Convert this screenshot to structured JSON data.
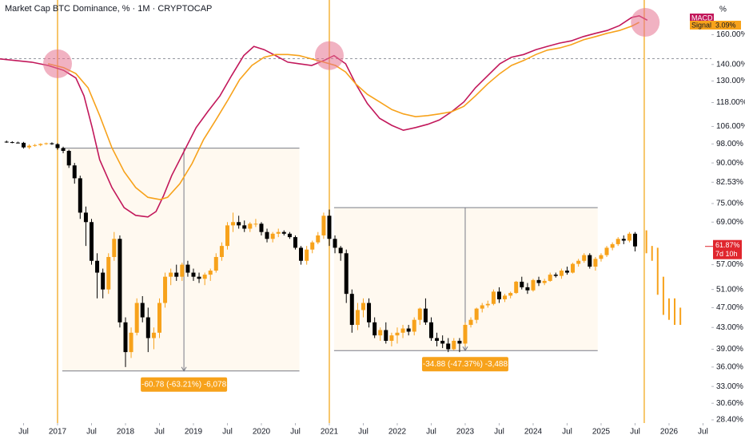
{
  "chart_data": {
    "type": "candlestick",
    "title": "Market Cap BTC Dominance, % · 1M · CRYPTOCAP",
    "y_unit_label": "%",
    "log_scale": true,
    "xlim": [
      2016.153,
      2026.624
    ],
    "xticks": [
      {
        "value": 2016.5,
        "label": "Jul"
      },
      2017,
      {
        "value": 2017.5,
        "label": "Jul"
      },
      2018,
      {
        "value": 2018.5,
        "label": "Jul"
      },
      2019,
      {
        "value": 2019.5,
        "label": "Jul"
      },
      2020,
      {
        "value": 2020.5,
        "label": "Jul"
      },
      2021,
      {
        "value": 2021.5,
        "label": "Jul"
      },
      2022,
      {
        "value": 2022.5,
        "label": "Jul"
      },
      2023,
      {
        "value": 2023.5,
        "label": "Jul"
      },
      2024,
      {
        "value": 2024.5,
        "label": "Jul"
      },
      2025,
      {
        "value": 2025.5,
        "label": "Jul"
      },
      2026,
      {
        "value": 2026.5,
        "label": "Jul"
      }
    ],
    "ylim": [
      28,
      187
    ],
    "yticks": [
      {
        "value": 160,
        "label": "160.00%"
      },
      {
        "value": 140,
        "label": "140.00%"
      },
      {
        "value": 130,
        "label": "130.00%"
      },
      {
        "value": 118,
        "label": "118.00%"
      },
      {
        "value": 106,
        "label": "106.00%"
      },
      {
        "value": 98,
        "label": "98.00%"
      },
      {
        "value": 90,
        "label": "90.00%"
      },
      {
        "value": 82.53,
        "label": "82.53%"
      },
      {
        "value": 75,
        "label": "75.00%"
      },
      {
        "value": 69,
        "label": "69.00%"
      },
      {
        "value": 57,
        "label": "57.00%"
      },
      {
        "value": 51,
        "label": "51.00%"
      },
      {
        "value": 47,
        "label": "47.00%"
      },
      {
        "value": 43,
        "label": "43.00%"
      },
      {
        "value": 39,
        "label": "39.00%"
      },
      {
        "value": 36,
        "label": "36.00%"
      },
      {
        "value": 33,
        "label": "33.00%"
      },
      {
        "value": 30.6,
        "label": "30.60%"
      },
      {
        "value": 28.4,
        "label": "28.40%"
      }
    ],
    "y2lim": [
      -4.26,
      3.5
    ],
    "up_color": "#f7a21b",
    "down_color": "#000000",
    "candles": {
      "x": [
        2016.25,
        2016.333,
        2016.417,
        2016.5,
        2016.583,
        2016.667,
        2016.75,
        2016.833,
        2016.917,
        2017.0,
        2017.083,
        2017.167,
        2017.25,
        2017.333,
        2017.417,
        2017.5,
        2017.583,
        2017.667,
        2017.75,
        2017.833,
        2017.917,
        2018.0,
        2018.083,
        2018.167,
        2018.25,
        2018.333,
        2018.417,
        2018.5,
        2018.583,
        2018.667,
        2018.75,
        2018.833,
        2018.917,
        2019.0,
        2019.083,
        2019.167,
        2019.25,
        2019.333,
        2019.417,
        2019.5,
        2019.583,
        2019.667,
        2019.75,
        2019.833,
        2019.917,
        2020.0,
        2020.083,
        2020.167,
        2020.25,
        2020.333,
        2020.417,
        2020.5,
        2020.583,
        2020.667,
        2020.75,
        2020.833,
        2020.917,
        2021.0,
        2021.083,
        2021.167,
        2021.25,
        2021.333,
        2021.417,
        2021.5,
        2021.583,
        2021.667,
        2021.75,
        2021.833,
        2021.917,
        2022.0,
        2022.083,
        2022.167,
        2022.25,
        2022.333,
        2022.417,
        2022.5,
        2022.583,
        2022.667,
        2022.75,
        2022.833,
        2022.917,
        2023.0,
        2023.083,
        2023.167,
        2023.25,
        2023.333,
        2023.417,
        2023.5,
        2023.583,
        2023.667,
        2023.75,
        2023.833,
        2023.917,
        2024.0,
        2024.083,
        2024.167,
        2024.25,
        2024.333,
        2024.417,
        2024.5,
        2024.583,
        2024.667,
        2024.75,
        2024.833,
        2024.917,
        2025.0,
        2025.083,
        2025.167,
        2025.25,
        2025.333,
        2025.417,
        2025.5
      ],
      "open": [
        99,
        98.8,
        98.6,
        98.5,
        96.5,
        97.2,
        97.5,
        98,
        98.3,
        97.9,
        96.2,
        95,
        89,
        84,
        72,
        69,
        58,
        55,
        51,
        59,
        64,
        44,
        38.5,
        42,
        48,
        45,
        41,
        42,
        48,
        54,
        55,
        54,
        57,
        55,
        54,
        53.5,
        54.5,
        55.5,
        59,
        62,
        68,
        69,
        68,
        67,
        68.5,
        68.5,
        66,
        64,
        65.5,
        66,
        65.5,
        64.5,
        61.5,
        58,
        61,
        63,
        65,
        71,
        64,
        61.5,
        60,
        50,
        43.5,
        46.5,
        48,
        44,
        41.5,
        42.5,
        40.5,
        41.5,
        42,
        42.8,
        42.2,
        44.5,
        46.8,
        44,
        41,
        40.5,
        40,
        39,
        40.5,
        40,
        43.5,
        44.5,
        46.8,
        47.5,
        47.8,
        50.5,
        48.8,
        49.6,
        50.2,
        52.8,
        51.5,
        50.8,
        53.2,
        52.5,
        53,
        54.5,
        54.2,
        55.5,
        55,
        57.2,
        58,
        59.5,
        56.5,
        58.5,
        59.5,
        61.5,
        62.5,
        64,
        63.5,
        65.5
      ],
      "high": [
        99.5,
        99.2,
        99,
        98.9,
        97.8,
        98,
        98.3,
        98.6,
        98.7,
        98.3,
        96.8,
        95.5,
        90,
        85,
        74,
        70,
        60,
        56,
        60,
        66,
        65,
        45,
        43,
        49,
        49.5,
        47,
        43,
        49,
        55,
        56,
        57,
        57.5,
        58,
        56,
        55,
        55,
        56,
        60,
        63,
        69,
        72,
        71,
        69.5,
        69,
        70,
        69,
        67,
        66,
        67,
        66.5,
        66,
        65,
        62,
        62,
        63.5,
        66,
        72,
        73,
        65,
        62,
        61,
        51,
        48,
        49,
        49,
        45,
        43,
        44,
        42,
        43,
        43.5,
        43.5,
        45,
        47,
        49,
        45,
        42,
        41.5,
        41,
        41,
        41,
        44,
        45,
        47,
        48,
        48.5,
        51,
        51.5,
        50,
        50.5,
        53,
        54,
        52.5,
        53.5,
        54,
        53.5,
        55,
        55,
        56,
        56.5,
        57.5,
        58.5,
        60,
        60,
        59,
        60,
        62,
        63,
        64.5,
        65,
        66,
        66
      ],
      "low": [
        98.5,
        98.3,
        98.2,
        96,
        95.8,
        96.8,
        97,
        97.6,
        97.6,
        95.5,
        94,
        88,
        82,
        70,
        62,
        57,
        49,
        49,
        50,
        58,
        43,
        36,
        37.5,
        41.5,
        44,
        38.5,
        39,
        41,
        47,
        52,
        53,
        53,
        54,
        53,
        52.5,
        52,
        53,
        55,
        58,
        61,
        66,
        67,
        66,
        66,
        67.5,
        65,
        63,
        63,
        64.5,
        65,
        64,
        61,
        57,
        57,
        60,
        62.5,
        64,
        62,
        60,
        58,
        48,
        42,
        42.5,
        45,
        43,
        41,
        40.5,
        40,
        39.5,
        40,
        41,
        41.5,
        41.5,
        43.5,
        43.5,
        40.5,
        39.5,
        39.2,
        38.5,
        38.8,
        38.5,
        39.5,
        43,
        43.8,
        46,
        47,
        47.5,
        48,
        48.2,
        49,
        50,
        51,
        50,
        50.5,
        51.8,
        52,
        52.8,
        53.8,
        53.5,
        54.5,
        54.8,
        56.5,
        57.5,
        56,
        55.5,
        57.8,
        59,
        60.8,
        62,
        62.5,
        63,
        60.5
      ],
      "close": [
        98.8,
        98.6,
        98.5,
        96.5,
        97.2,
        97.5,
        98,
        98.3,
        97.9,
        96.2,
        95,
        89,
        84,
        72,
        69,
        58,
        55,
        51,
        59,
        64,
        44,
        38.5,
        42,
        48,
        45,
        41,
        42,
        48,
        54,
        55,
        54,
        57,
        55,
        54,
        53.5,
        54.5,
        55.5,
        59,
        62,
        68,
        69,
        68,
        67,
        68.5,
        68.5,
        66,
        64,
        65.5,
        66,
        65.5,
        64.5,
        61.5,
        58,
        61,
        63,
        65,
        71,
        64,
        61.5,
        60,
        50,
        43.5,
        46.5,
        48,
        44,
        41.5,
        42.5,
        40.5,
        41.5,
        42,
        42.8,
        42.2,
        44.5,
        46.8,
        44,
        41,
        40.5,
        40,
        39,
        40.5,
        40,
        43.5,
        44.5,
        46.8,
        47.5,
        47.8,
        50.5,
        48.8,
        49.6,
        50.2,
        52.8,
        51.5,
        50.8,
        53.2,
        52.5,
        53,
        54.5,
        54.2,
        55.5,
        55,
        57.2,
        58,
        59.5,
        56.5,
        58.5,
        59.5,
        61.5,
        62.5,
        64,
        63.5,
        65.5,
        61.87
      ]
    },
    "projection": {
      "color": "#f7a21b",
      "x": [
        2025.667,
        2025.75,
        2025.833,
        2025.917,
        2026.0,
        2026.083,
        2026.167
      ],
      "high": [
        66.5,
        62,
        61.5,
        54,
        49,
        49,
        47
      ],
      "low": [
        60,
        58,
        49.8,
        45.5,
        44.5,
        43.5,
        43.5
      ]
    },
    "series": [
      {
        "name": "MACD",
        "color": "#c2185b",
        "axis": "y2",
        "x": [
          2016.15,
          2016.62,
          2016.86,
          2017.09,
          2017.27,
          2017.39,
          2017.51,
          2017.62,
          2017.8,
          2017.98,
          2018.15,
          2018.33,
          2018.45,
          2018.56,
          2018.68,
          2018.86,
          2019.04,
          2019.21,
          2019.39,
          2019.56,
          2019.74,
          2019.89,
          2020.04,
          2020.21,
          2020.39,
          2020.56,
          2020.74,
          2020.92,
          2021.07,
          2021.24,
          2021.39,
          2021.56,
          2021.74,
          2021.92,
          2022.09,
          2022.27,
          2022.45,
          2022.62,
          2022.8,
          2022.98,
          2023.15,
          2023.33,
          2023.51,
          2023.68,
          2023.86,
          2024.04,
          2024.21,
          2024.39,
          2024.56,
          2024.74,
          2024.92,
          2025.09,
          2025.27,
          2025.45,
          2025.56,
          2025.68
        ],
        "values": [
          2.42,
          2.36,
          2.3,
          2.21,
          2.07,
          1.74,
          1.16,
          0.57,
          0.06,
          -0.31,
          -0.45,
          -0.48,
          -0.38,
          -0.09,
          0.28,
          0.72,
          1.16,
          1.45,
          1.74,
          2.11,
          2.48,
          2.65,
          2.59,
          2.48,
          2.36,
          2.33,
          2.3,
          2.39,
          2.48,
          2.33,
          1.96,
          1.6,
          1.33,
          1.2,
          1.11,
          1.16,
          1.22,
          1.3,
          1.45,
          1.63,
          1.89,
          2.11,
          2.33,
          2.45,
          2.5,
          2.59,
          2.65,
          2.71,
          2.75,
          2.83,
          2.89,
          2.94,
          3.03,
          3.18,
          3.21,
          3.13
        ]
      },
      {
        "name": "Signal",
        "color": "#f7a21b",
        "axis": "y2",
        "value_label": "3.09%",
        "x": [
          2016.86,
          2017.09,
          2017.27,
          2017.45,
          2017.62,
          2017.8,
          2017.98,
          2018.15,
          2018.33,
          2018.51,
          2018.62,
          2018.8,
          2018.98,
          2019.15,
          2019.33,
          2019.51,
          2019.68,
          2019.86,
          2020.04,
          2020.21,
          2020.39,
          2020.56,
          2020.74,
          2020.92,
          2021.09,
          2021.24,
          2021.39,
          2021.56,
          2021.74,
          2021.92,
          2022.09,
          2022.27,
          2022.45,
          2022.62,
          2022.8,
          2022.98,
          2023.15,
          2023.33,
          2023.51,
          2023.68,
          2023.86,
          2024.04,
          2024.21,
          2024.39,
          2024.56,
          2024.74,
          2024.92,
          2025.09,
          2025.27,
          2025.45,
          2025.56
        ],
        "values": [
          2.33,
          2.26,
          2.15,
          1.89,
          1.38,
          0.79,
          0.35,
          0.06,
          -0.12,
          -0.16,
          -0.12,
          0.13,
          0.5,
          0.94,
          1.3,
          1.67,
          2.04,
          2.3,
          2.45,
          2.5,
          2.5,
          2.48,
          2.42,
          2.36,
          2.3,
          2.18,
          1.96,
          1.77,
          1.63,
          1.49,
          1.41,
          1.36,
          1.38,
          1.41,
          1.45,
          1.55,
          1.74,
          1.96,
          2.15,
          2.3,
          2.39,
          2.5,
          2.58,
          2.62,
          2.68,
          2.77,
          2.83,
          2.89,
          2.94,
          3.02,
          3.09
        ]
      }
    ],
    "vlines": {
      "color": "#f7c66b",
      "x": [
        2017.0,
        2021.0,
        2025.635
      ]
    },
    "highlights": {
      "color": "#e57390",
      "x": [
        2017.0,
        2021.0,
        2025.65
      ],
      "y": [
        2.33,
        2.48,
        3.09
      ]
    },
    "hline": 143.7,
    "measures": [
      {
        "x_start": 2017.07,
        "x_end": 2020.56,
        "arrow_x": 2018.86,
        "top": 96.15,
        "bottom": 35.37,
        "label": "-60.78 (-63.21%) -6,078"
      },
      {
        "x_start": 2021.07,
        "x_end": 2024.95,
        "arrow_x": 2023.0,
        "top": 73.63,
        "bottom": 38.75,
        "label": "-34.88 (-47.37%) -3,488"
      }
    ],
    "last_price": {
      "value": 61.87,
      "label": "61.87%",
      "countdown": "7d 10h",
      "color": "#e0262e"
    }
  }
}
